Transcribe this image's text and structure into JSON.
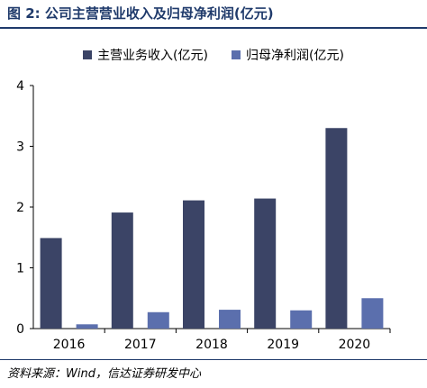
{
  "figure": {
    "title": "图 2:  公司主营营业收入及归母净利润(亿元)",
    "source": "资料来源：Wind，信达证券研发中心"
  },
  "colors": {
    "revenue": "#3b4466",
    "profit": "#5b6fad",
    "title": "#1f3a6b",
    "axis": "#000000"
  },
  "chart_data": {
    "type": "bar",
    "title": "",
    "xlabel": "",
    "ylabel": "",
    "categories": [
      "2016",
      "2017",
      "2018",
      "2019",
      "2020"
    ],
    "series": [
      {
        "name": "主营业务收入(亿元)",
        "values": [
          1.49,
          1.91,
          2.11,
          2.14,
          3.3
        ]
      },
      {
        "name": "归母净利润(亿元)",
        "values": [
          0.07,
          0.27,
          0.31,
          0.3,
          0.5
        ]
      }
    ],
    "ylim": [
      0,
      4
    ],
    "yticks": [
      "0",
      "1",
      "2",
      "3",
      "4"
    ],
    "grid": false,
    "legend_position": "top-center"
  }
}
